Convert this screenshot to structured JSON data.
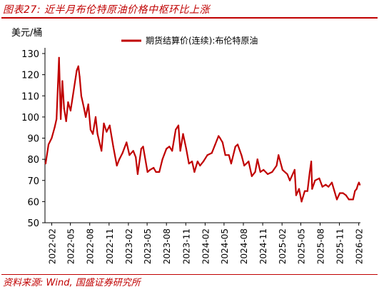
{
  "header": {
    "title": "图表27:  近半月布伦特原油价格中枢环比上涨"
  },
  "footer": {
    "source": "资料来源:  Wind, 国盛证券研究所"
  },
  "colors": {
    "accent": "#c00000",
    "series": "#c00000",
    "axis": "#000000"
  },
  "chart_data": {
    "type": "line",
    "ylabel": "美元/桶",
    "xlabel": "",
    "ylim": [
      50,
      130
    ],
    "yticks": [
      50,
      60,
      70,
      80,
      90,
      100,
      110,
      120,
      130
    ],
    "xticks": [
      "2022-02",
      "2022-05",
      "2022-08",
      "2022-11",
      "2023-02",
      "2023-05",
      "2023-08",
      "2023-11",
      "2024-02",
      "2024-05",
      "2024-08",
      "2024-11",
      "2025-02",
      "2025-05",
      "2025-08",
      "2025-11",
      "2026-02"
    ],
    "grid": false,
    "legend_position": "top-right",
    "series": [
      {
        "name": "期货结算价(连续):布伦特原油",
        "x": [
          "2022-01-03",
          "2022-01-17",
          "2022-02-01",
          "2022-02-15",
          "2022-02-24",
          "2022-03-08",
          "2022-03-16",
          "2022-03-24",
          "2022-04-01",
          "2022-04-11",
          "2022-04-20",
          "2022-05-02",
          "2022-05-16",
          "2022-05-31",
          "2022-06-08",
          "2022-06-14",
          "2022-06-22",
          "2022-07-05",
          "2022-07-13",
          "2022-07-25",
          "2022-08-05",
          "2022-08-16",
          "2022-08-29",
          "2022-09-07",
          "2022-09-26",
          "2022-10-07",
          "2022-10-20",
          "2022-11-04",
          "2022-11-21",
          "2022-12-08",
          "2022-12-20",
          "2023-01-04",
          "2023-01-23",
          "2023-02-06",
          "2023-02-24",
          "2023-03-08",
          "2023-03-17",
          "2023-04-03",
          "2023-04-12",
          "2023-05-03",
          "2023-05-15",
          "2023-06-01",
          "2023-06-12",
          "2023-06-28",
          "2023-07-13",
          "2023-08-01",
          "2023-08-15",
          "2023-08-28",
          "2023-09-14",
          "2023-09-27",
          "2023-10-06",
          "2023-10-19",
          "2023-11-03",
          "2023-11-16",
          "2023-12-01",
          "2023-12-12",
          "2023-12-27",
          "2024-01-08",
          "2024-01-24",
          "2024-02-12",
          "2024-03-04",
          "2024-03-20",
          "2024-04-05",
          "2024-04-12",
          "2024-04-24",
          "2024-05-07",
          "2024-05-24",
          "2024-06-04",
          "2024-06-24",
          "2024-07-05",
          "2024-07-23",
          "2024-08-05",
          "2024-08-26",
          "2024-09-10",
          "2024-09-26",
          "2024-10-07",
          "2024-10-21",
          "2024-11-05",
          "2024-11-25",
          "2024-12-16",
          "2025-01-06",
          "2025-01-15",
          "2025-02-03",
          "2025-02-26",
          "2025-03-10",
          "2025-04-02",
          "2025-04-09",
          "2025-04-23",
          "2025-05-05",
          "2025-05-20",
          "2025-06-02",
          "2025-06-13",
          "2025-06-20",
          "2025-06-24",
          "2025-07-08",
          "2025-07-28",
          "2025-08-12",
          "2025-08-28",
          "2025-09-10",
          "2025-09-26",
          "2025-10-08",
          "2025-10-20",
          "2025-11-03",
          "2025-11-18",
          "2025-12-02",
          "2025-12-16",
          "2026-01-05",
          "2026-01-14",
          "2026-01-22",
          "2026-01-28",
          "2026-02-02",
          "2026-02-06"
        ],
        "values": [
          78,
          87,
          90,
          95,
          99,
          128,
          99,
          117,
          104,
          98,
          107,
          103,
          112,
          122,
          124,
          119,
          110,
          104,
          100,
          106,
          94,
          92,
          100,
          92,
          84,
          97,
          93,
          96,
          86,
          77,
          80,
          83,
          88,
          82,
          84,
          81,
          73,
          85,
          86,
          74,
          75,
          76,
          74,
          74,
          80,
          85,
          86,
          84,
          94,
          96,
          84,
          92,
          85,
          78,
          79,
          74,
          79,
          77,
          79,
          82,
          83,
          87,
          91,
          90,
          88,
          82,
          82,
          78,
          86,
          87,
          82,
          77,
          79,
          72,
          74,
          80,
          74,
          75,
          73,
          74,
          77,
          82,
          75,
          73,
          70,
          75,
          63,
          66,
          60,
          65,
          65,
          74,
          79,
          66,
          70,
          71,
          67,
          68,
          67,
          69,
          65,
          61,
          64,
          64,
          63,
          61,
          61,
          65,
          66,
          68,
          69,
          68
        ]
      }
    ]
  }
}
